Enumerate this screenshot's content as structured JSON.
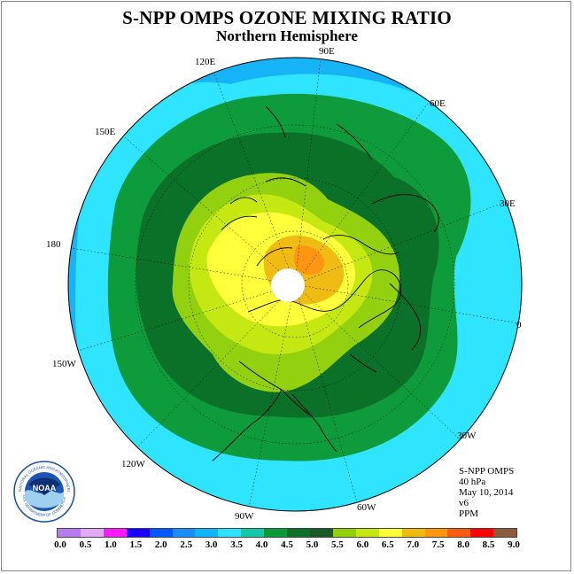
{
  "title": "S-NPP OMPS OZONE MIXING RATIO",
  "subtitle": "Northern Hemisphere",
  "longitude_labels": {
    "lon_90e": "90E",
    "lon_60e": "60E",
    "lon_30e": "30E",
    "lon_0": "0",
    "lon_30w": "30W",
    "lon_60w": "60W",
    "lon_90w": "90W",
    "lon_120w": "120W",
    "lon_150w": "150W",
    "lon_180": "180",
    "lon_150e": "150E",
    "lon_120e": "120E"
  },
  "info": {
    "instrument": "S-NPP OMPS",
    "level": "40 hPa",
    "date": "May 10, 2014",
    "version": "v6",
    "units": "PPM"
  },
  "logo": {
    "text": "NOAA",
    "ring_text": "NATIONAL OCEANIC AND ATMOSPHERIC ADMINISTRATION",
    "ring_text_bottom": "U.S. DEPARTMENT OF COMMERCE"
  },
  "colorbar": {
    "tick_labels": [
      "0.0",
      "0.5",
      "1.0",
      "1.5",
      "2.0",
      "2.5",
      "3.0",
      "3.5",
      "4.0",
      "4.5",
      "5.0",
      "5.5",
      "6.0",
      "6.5",
      "7.0",
      "7.5",
      "8.0",
      "8.5",
      "9.0"
    ],
    "colors": [
      "#b57cf2",
      "#e0aaf5",
      "#ff19ff",
      "#1800ff",
      "#0058ff",
      "#1a8dff",
      "#10b4ff",
      "#2ee2ff",
      "#12c8a8",
      "#0a9a3a",
      "#0b7128",
      "#1a5a26",
      "#92d010",
      "#c6e812",
      "#ffff3c",
      "#f0bc14",
      "#ff9612",
      "#ff5a12",
      "#ff0000",
      "#8c5a3c"
    ]
  }
}
